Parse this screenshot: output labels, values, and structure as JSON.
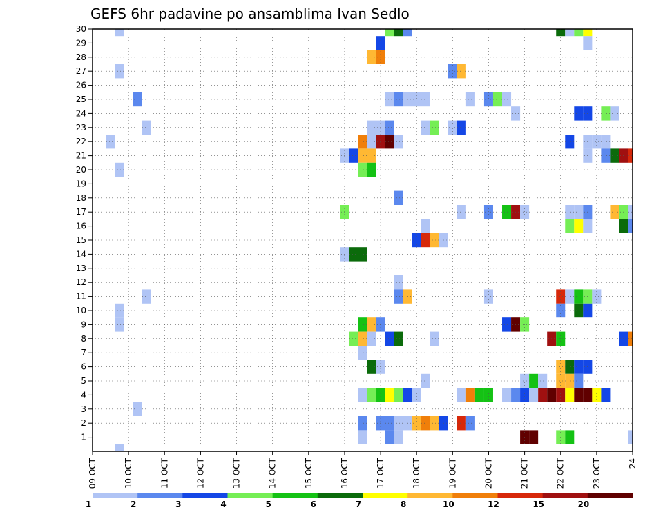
{
  "chart_data": {
    "type": "heatmap",
    "title": "GEFS 6hr padavine po ansamblima Ivan Sedlo",
    "x_ticks": [
      "09 OCT",
      "10 OCT",
      "11 OCT",
      "12 OCT",
      "13 OCT",
      "14 OCT",
      "15 OCT",
      "16 OCT",
      "17 OCT",
      "18 OCT",
      "19 OCT",
      "20 OCT",
      "21 OCT",
      "22 OCT",
      "23 OCT",
      "24"
    ],
    "y_ticks": [
      "1",
      "2",
      "3",
      "4",
      "5",
      "6",
      "7",
      "8",
      "9",
      "10",
      "11",
      "12",
      "13",
      "14",
      "15",
      "16",
      "17",
      "18",
      "19",
      "20",
      "21",
      "22",
      "23",
      "24",
      "25",
      "26",
      "27",
      "28",
      "29",
      "30"
    ],
    "x_range": [
      0,
      60
    ],
    "y_range": [
      0,
      30
    ],
    "grid": true,
    "colorbar": {
      "position": "bottom",
      "labels": [
        "1",
        "2",
        "3",
        "4",
        "5",
        "6",
        "7",
        "8",
        "10",
        "12",
        "15",
        "20"
      ],
      "colors": [
        "#b0c4f5",
        "#5b88ee",
        "#1447e6",
        "#75ee55",
        "#14c214",
        "#0b6b0b",
        "#ffff00",
        "#ffb833",
        "#f07f0a",
        "#d7280a",
        "#a01010",
        "#600000"
      ]
    },
    "cells": [
      [
        3,
        30,
        "#b0c4f5"
      ],
      [
        3,
        27,
        "#b0c4f5"
      ],
      [
        3,
        20,
        "#b0c4f5"
      ],
      [
        3,
        10,
        "#b0c4f5"
      ],
      [
        3,
        9,
        "#b0c4f5"
      ],
      [
        3,
        0,
        "#b0c4f5"
      ],
      [
        2,
        22,
        "#b0c4f5"
      ],
      [
        5,
        25,
        "#5b88ee"
      ],
      [
        5,
        3,
        "#b0c4f5"
      ],
      [
        6,
        23,
        "#b0c4f5"
      ],
      [
        6,
        11,
        "#b0c4f5"
      ],
      [
        28,
        21,
        "#b0c4f5"
      ],
      [
        28,
        17,
        "#75ee55"
      ],
      [
        28,
        14,
        "#b0c4f5"
      ],
      [
        29,
        21,
        "#1447e6"
      ],
      [
        29,
        14,
        "#0b6b0b"
      ],
      [
        29,
        8,
        "#75ee55"
      ],
      [
        30,
        22,
        "#f07f0a"
      ],
      [
        30,
        21,
        "#ffb833"
      ],
      [
        30,
        20,
        "#75ee55"
      ],
      [
        30,
        14,
        "#0b6b0b"
      ],
      [
        30,
        9,
        "#14c214"
      ],
      [
        30,
        8,
        "#ffb833"
      ],
      [
        30,
        7,
        "#b0c4f5"
      ],
      [
        30,
        4,
        "#b0c4f5"
      ],
      [
        30,
        2,
        "#5b88ee"
      ],
      [
        30,
        1,
        "#b0c4f5"
      ],
      [
        31,
        28,
        "#ffb833"
      ],
      [
        31,
        23,
        "#b0c4f5"
      ],
      [
        31,
        22,
        "#b0c4f5"
      ],
      [
        31,
        21,
        "#ffb833"
      ],
      [
        31,
        20,
        "#14c214"
      ],
      [
        31,
        9,
        "#ffb833"
      ],
      [
        31,
        8,
        "#b0c4f5"
      ],
      [
        31,
        6,
        "#0b6b0b"
      ],
      [
        31,
        4,
        "#75ee55"
      ],
      [
        32,
        29,
        "#1447e6"
      ],
      [
        32,
        28,
        "#f07f0a"
      ],
      [
        32,
        23,
        "#b0c4f5"
      ],
      [
        32,
        22,
        "#a01010"
      ],
      [
        32,
        9,
        "#5b88ee"
      ],
      [
        32,
        6,
        "#b0c4f5"
      ],
      [
        32,
        4,
        "#14c214"
      ],
      [
        32,
        2,
        "#5b88ee"
      ],
      [
        33,
        30,
        "#75ee55"
      ],
      [
        33,
        25,
        "#b0c4f5"
      ],
      [
        33,
        23,
        "#5b88ee"
      ],
      [
        33,
        22,
        "#600000"
      ],
      [
        33,
        8,
        "#1447e6"
      ],
      [
        33,
        4,
        "#ffff00"
      ],
      [
        33,
        2,
        "#5b88ee"
      ],
      [
        33,
        1,
        "#5b88ee"
      ],
      [
        34,
        30,
        "#0b6b0b"
      ],
      [
        34,
        25,
        "#5b88ee"
      ],
      [
        34,
        22,
        "#b0c4f5"
      ],
      [
        34,
        18,
        "#5b88ee"
      ],
      [
        34,
        12,
        "#b0c4f5"
      ],
      [
        34,
        11,
        "#5b88ee"
      ],
      [
        34,
        8,
        "#0b6b0b"
      ],
      [
        34,
        4,
        "#75ee55"
      ],
      [
        34,
        2,
        "#b0c4f5"
      ],
      [
        34,
        1,
        "#b0c4f5"
      ],
      [
        35,
        30,
        "#5b88ee"
      ],
      [
        35,
        25,
        "#b0c4f5"
      ],
      [
        35,
        11,
        "#ffb833"
      ],
      [
        35,
        4,
        "#1447e6"
      ],
      [
        35,
        2,
        "#b0c4f5"
      ],
      [
        36,
        25,
        "#b0c4f5"
      ],
      [
        36,
        15,
        "#1447e6"
      ],
      [
        36,
        4,
        "#b0c4f5"
      ],
      [
        36,
        2,
        "#ffb833"
      ],
      [
        37,
        25,
        "#b0c4f5"
      ],
      [
        37,
        23,
        "#b0c4f5"
      ],
      [
        37,
        16,
        "#b0c4f5"
      ],
      [
        37,
        15,
        "#d7280a"
      ],
      [
        37,
        5,
        "#b0c4f5"
      ],
      [
        37,
        2,
        "#f07f0a"
      ],
      [
        38,
        23,
        "#75ee55"
      ],
      [
        38,
        15,
        "#ffb833"
      ],
      [
        38,
        8,
        "#b0c4f5"
      ],
      [
        38,
        2,
        "#ffb833"
      ],
      [
        39,
        15,
        "#b0c4f5"
      ],
      [
        39,
        2,
        "#1447e6"
      ],
      [
        40,
        27,
        "#5b88ee"
      ],
      [
        40,
        23,
        "#b0c4f5"
      ],
      [
        41,
        27,
        "#ffb833"
      ],
      [
        41,
        23,
        "#1447e6"
      ],
      [
        41,
        17,
        "#b0c4f5"
      ],
      [
        41,
        4,
        "#b0c4f5"
      ],
      [
        41,
        2,
        "#d7280a"
      ],
      [
        42,
        25,
        "#b0c4f5"
      ],
      [
        42,
        4,
        "#f07f0a"
      ],
      [
        42,
        2,
        "#5b88ee"
      ],
      [
        43,
        4,
        "#14c214"
      ],
      [
        44,
        25,
        "#5b88ee"
      ],
      [
        44,
        17,
        "#5b88ee"
      ],
      [
        44,
        11,
        "#b0c4f5"
      ],
      [
        44,
        4,
        "#14c214"
      ],
      [
        45,
        25,
        "#75ee55"
      ],
      [
        46,
        25,
        "#b0c4f5"
      ],
      [
        46,
        17,
        "#14c214"
      ],
      [
        46,
        9,
        "#1447e6"
      ],
      [
        46,
        4,
        "#b0c4f5"
      ],
      [
        47,
        24,
        "#b0c4f5"
      ],
      [
        47,
        17,
        "#a01010"
      ],
      [
        47,
        9,
        "#600000"
      ],
      [
        47,
        4,
        "#5b88ee"
      ],
      [
        48,
        17,
        "#b0c4f5"
      ],
      [
        48,
        9,
        "#75ee55"
      ],
      [
        48,
        5,
        "#b0c4f5"
      ],
      [
        48,
        4,
        "#1447e6"
      ],
      [
        48,
        1,
        "#600000"
      ],
      [
        49,
        5,
        "#14c214"
      ],
      [
        49,
        4,
        "#b0c4f5"
      ],
      [
        49,
        1,
        "#600000"
      ],
      [
        50,
        5,
        "#b0c4f5"
      ],
      [
        50,
        4,
        "#a01010"
      ],
      [
        51,
        8,
        "#a01010"
      ],
      [
        51,
        4,
        "#600000"
      ],
      [
        52,
        30,
        "#0b6b0b"
      ],
      [
        52,
        11,
        "#d7280a"
      ],
      [
        52,
        10,
        "#5b88ee"
      ],
      [
        52,
        8,
        "#14c214"
      ],
      [
        52,
        6,
        "#ffb833"
      ],
      [
        52,
        5,
        "#ffb833"
      ],
      [
        52,
        4,
        "#a01010"
      ],
      [
        52,
        1,
        "#75ee55"
      ],
      [
        53,
        30,
        "#b0c4f5"
      ],
      [
        53,
        22,
        "#1447e6"
      ],
      [
        53,
        17,
        "#b0c4f5"
      ],
      [
        53,
        16,
        "#75ee55"
      ],
      [
        53,
        11,
        "#b0c4f5"
      ],
      [
        53,
        6,
        "#0b6b0b"
      ],
      [
        53,
        5,
        "#ffb833"
      ],
      [
        53,
        4,
        "#ffff00"
      ],
      [
        53,
        1,
        "#14c214"
      ],
      [
        54,
        30,
        "#75ee55"
      ],
      [
        54,
        24,
        "#1447e6"
      ],
      [
        54,
        17,
        "#b0c4f5"
      ],
      [
        54,
        16,
        "#ffff00"
      ],
      [
        54,
        11,
        "#14c214"
      ],
      [
        54,
        10,
        "#0b6b0b"
      ],
      [
        54,
        6,
        "#1447e6"
      ],
      [
        54,
        5,
        "#5b88ee"
      ],
      [
        54,
        4,
        "#600000"
      ],
      [
        55,
        30,
        "#ffff00"
      ],
      [
        55,
        29,
        "#b0c4f5"
      ],
      [
        55,
        24,
        "#1447e6"
      ],
      [
        55,
        22,
        "#b0c4f5"
      ],
      [
        55,
        21,
        "#b0c4f5"
      ],
      [
        55,
        17,
        "#5b88ee"
      ],
      [
        55,
        16,
        "#b0c4f5"
      ],
      [
        55,
        11,
        "#75ee55"
      ],
      [
        55,
        10,
        "#1447e6"
      ],
      [
        55,
        6,
        "#1447e6"
      ],
      [
        55,
        4,
        "#600000"
      ],
      [
        56,
        22,
        "#b0c4f5"
      ],
      [
        56,
        11,
        "#b0c4f5"
      ],
      [
        56,
        4,
        "#ffff00"
      ],
      [
        57,
        24,
        "#75ee55"
      ],
      [
        57,
        22,
        "#b0c4f5"
      ],
      [
        57,
        21,
        "#5b88ee"
      ],
      [
        57,
        4,
        "#1447e6"
      ],
      [
        58,
        24,
        "#b0c4f5"
      ],
      [
        58,
        21,
        "#0b6b0b"
      ],
      [
        58,
        17,
        "#ffb833"
      ],
      [
        59,
        21,
        "#a01010"
      ],
      [
        59,
        17,
        "#75ee55"
      ],
      [
        59,
        16,
        "#0b6b0b"
      ],
      [
        60,
        21,
        "#d7280a"
      ],
      [
        60,
        17,
        "#b0c4f5"
      ],
      [
        60,
        16,
        "#5b88ee"
      ],
      [
        60,
        8,
        "#f07f0a"
      ],
      [
        60,
        1,
        "#b0c4f5"
      ],
      [
        59,
        8,
        "#1447e6"
      ]
    ]
  }
}
